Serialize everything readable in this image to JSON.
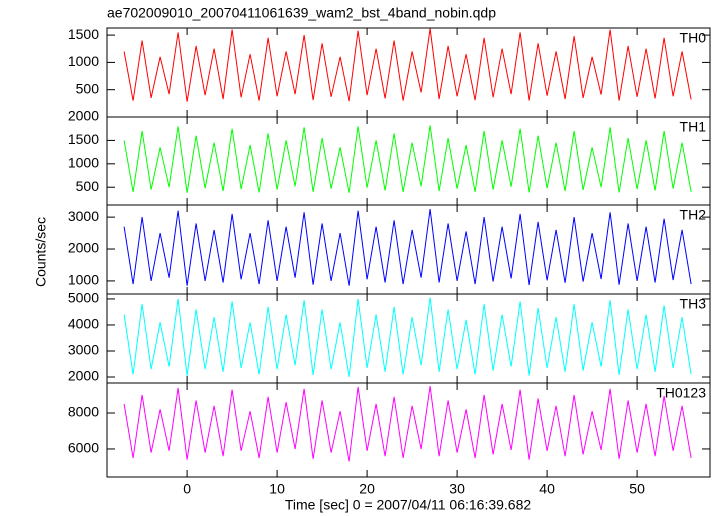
{
  "chart_data": [
    {
      "type": "line",
      "title": "ae702009010_20070411061639_wam2_bst_4band_nobin.qdp",
      "x": [
        -7,
        -6,
        -5,
        -4,
        -3,
        -2,
        -1,
        0,
        1,
        2,
        3,
        4,
        5,
        6,
        7,
        8,
        9,
        10,
        11,
        12,
        13,
        14,
        15,
        16,
        17,
        18,
        19,
        20,
        21,
        22,
        23,
        24,
        25,
        26,
        27,
        28,
        29,
        30,
        31,
        32,
        33,
        34,
        35,
        36,
        37,
        38,
        39,
        40,
        41,
        42,
        43,
        44,
        45,
        46,
        47,
        48,
        49,
        50,
        51,
        52,
        53,
        54,
        55,
        56
      ],
      "series": [
        {
          "name": "TH0",
          "color": "#ff0000",
          "values": [
            1200,
            300,
            1400,
            350,
            1100,
            420,
            1550,
            280,
            1300,
            400,
            1250,
            330,
            1600,
            360,
            1150,
            300,
            1450,
            380,
            1200,
            420,
            1500,
            310,
            1350,
            370,
            1100,
            290,
            1580,
            400,
            1250,
            340,
            1400,
            300,
            1200,
            450,
            1620,
            330,
            1300,
            380,
            1150,
            310,
            1450,
            360,
            1250,
            420,
            1550,
            300,
            1350,
            390,
            1200,
            330,
            1480,
            350,
            1100,
            410,
            1600,
            300,
            1300,
            370,
            1250,
            340,
            1450,
            380,
            1200,
            320
          ]
        }
      ],
      "ylim": [
        0,
        1630
      ],
      "yticks": [
        500,
        1000,
        1500
      ]
    },
    {
      "type": "line",
      "x": [
        -7,
        -6,
        -5,
        -4,
        -3,
        -2,
        -1,
        0,
        1,
        2,
        3,
        4,
        5,
        6,
        7,
        8,
        9,
        10,
        11,
        12,
        13,
        14,
        15,
        16,
        17,
        18,
        19,
        20,
        21,
        22,
        23,
        24,
        25,
        26,
        27,
        28,
        29,
        30,
        31,
        32,
        33,
        34,
        35,
        36,
        37,
        38,
        39,
        40,
        41,
        42,
        43,
        44,
        45,
        46,
        47,
        48,
        49,
        50,
        51,
        52,
        53,
        54,
        55,
        56
      ],
      "series": [
        {
          "name": "TH1",
          "color": "#00ff00",
          "values": [
            1500,
            400,
            1700,
            450,
            1350,
            500,
            1800,
            380,
            1600,
            480,
            1450,
            420,
            1750,
            460,
            1400,
            390,
            1650,
            450,
            1500,
            520,
            1780,
            400,
            1550,
            470,
            1350,
            380,
            1800,
            490,
            1500,
            430,
            1650,
            400,
            1450,
            520,
            1820,
            420,
            1550,
            470,
            1400,
            400,
            1700,
            450,
            1500,
            510,
            1750,
            390,
            1600,
            480,
            1450,
            420,
            1700,
            440,
            1350,
            500,
            1780,
            390,
            1550,
            460,
            1500,
            430,
            1700,
            470,
            1450,
            400
          ]
        }
      ],
      "ylim": [
        120,
        2000
      ],
      "yticks": [
        500,
        1000,
        1500,
        2000
      ]
    },
    {
      "type": "line",
      "ylabel": "Counts/sec",
      "x": [
        -7,
        -6,
        -5,
        -4,
        -3,
        -2,
        -1,
        0,
        1,
        2,
        3,
        4,
        5,
        6,
        7,
        8,
        9,
        10,
        11,
        12,
        13,
        14,
        15,
        16,
        17,
        18,
        19,
        20,
        21,
        22,
        23,
        24,
        25,
        26,
        27,
        28,
        29,
        30,
        31,
        32,
        33,
        34,
        35,
        36,
        37,
        38,
        39,
        40,
        41,
        42,
        43,
        44,
        45,
        46,
        47,
        48,
        49,
        50,
        51,
        52,
        53,
        54,
        55,
        56
      ],
      "series": [
        {
          "name": "TH2",
          "color": "#0000ff",
          "values": [
            2700,
            900,
            3000,
            1000,
            2500,
            1100,
            3200,
            850,
            2800,
            1000,
            2600,
            950,
            3100,
            1050,
            2500,
            900,
            2900,
            1000,
            2700,
            1100,
            3150,
            880,
            2800,
            1000,
            2500,
            850,
            3200,
            1050,
            2700,
            950,
            2900,
            900,
            2600,
            1100,
            3250,
            950,
            2800,
            1000,
            2550,
            900,
            3000,
            980,
            2700,
            1080,
            3100,
            870,
            2850,
            1020,
            2600,
            940,
            3000,
            980,
            2500,
            1060,
            3150,
            880,
            2800,
            1000,
            2700,
            950,
            2950,
            1030,
            2600,
            900
          ]
        }
      ],
      "ylim": [
        590,
        3380
      ],
      "yticks": [
        1000,
        2000,
        3000
      ]
    },
    {
      "type": "line",
      "x": [
        -7,
        -6,
        -5,
        -4,
        -3,
        -2,
        -1,
        0,
        1,
        2,
        3,
        4,
        5,
        6,
        7,
        8,
        9,
        10,
        11,
        12,
        13,
        14,
        15,
        16,
        17,
        18,
        19,
        20,
        21,
        22,
        23,
        24,
        25,
        26,
        27,
        28,
        29,
        30,
        31,
        32,
        33,
        34,
        35,
        36,
        37,
        38,
        39,
        40,
        41,
        42,
        43,
        44,
        45,
        46,
        47,
        48,
        49,
        50,
        51,
        52,
        53,
        54,
        55,
        56
      ],
      "series": [
        {
          "name": "TH3",
          "color": "#00ffff",
          "values": [
            4400,
            2100,
            4800,
            2300,
            4100,
            2400,
            5000,
            2050,
            4600,
            2300,
            4300,
            2200,
            4900,
            2350,
            4100,
            2100,
            4700,
            2300,
            4400,
            2450,
            4950,
            2080,
            4600,
            2300,
            4100,
            2000,
            5000,
            2350,
            4400,
            2200,
            4700,
            2100,
            4300,
            2450,
            5050,
            2200,
            4600,
            2300,
            4200,
            2100,
            4800,
            2250,
            4400,
            2400,
            4900,
            2050,
            4650,
            2350,
            4300,
            2200,
            4800,
            2250,
            4100,
            2400,
            4950,
            2080,
            4600,
            2300,
            4400,
            2200,
            4750,
            2350,
            4300,
            2100
          ]
        }
      ],
      "ylim": [
        1770,
        5190
      ],
      "yticks": [
        2000,
        3000,
        4000,
        5000
      ]
    },
    {
      "type": "line",
      "xlabel": "Time [sec] 0 = 2007/04/11 06:16:39.682",
      "x": [
        -7,
        -6,
        -5,
        -4,
        -3,
        -2,
        -1,
        0,
        1,
        2,
        3,
        4,
        5,
        6,
        7,
        8,
        9,
        10,
        11,
        12,
        13,
        14,
        15,
        16,
        17,
        18,
        19,
        20,
        21,
        22,
        23,
        24,
        25,
        26,
        27,
        28,
        29,
        30,
        31,
        32,
        33,
        34,
        35,
        36,
        37,
        38,
        39,
        40,
        41,
        42,
        43,
        44,
        45,
        46,
        47,
        48,
        49,
        50,
        51,
        52,
        53,
        54,
        55,
        56
      ],
      "series": [
        {
          "name": "TH0123",
          "color": "#ff00ff",
          "values": [
            8500,
            5500,
            9000,
            5800,
            8200,
            5900,
            9400,
            5400,
            8700,
            5800,
            8400,
            5600,
            9300,
            5900,
            8100,
            5500,
            8900,
            5800,
            8600,
            6000,
            9350,
            5450,
            8700,
            5800,
            8100,
            5300,
            9450,
            5900,
            8500,
            5600,
            8900,
            5500,
            8400,
            6000,
            9500,
            5600,
            8700,
            5800,
            8200,
            5500,
            9000,
            5700,
            8500,
            5950,
            9300,
            5400,
            8800,
            5900,
            8400,
            5600,
            9000,
            5700,
            8100,
            5950,
            9350,
            5450,
            8700,
            5800,
            8500,
            5600,
            8950,
            5900,
            8400,
            5500
          ]
        }
      ],
      "ylim": [
        4440,
        9670
      ],
      "yticks": [
        6000,
        8000
      ],
      "xlim": [
        -8.9,
        58.1
      ],
      "xticks": [
        0,
        10,
        20,
        30,
        40,
        50
      ]
    }
  ]
}
